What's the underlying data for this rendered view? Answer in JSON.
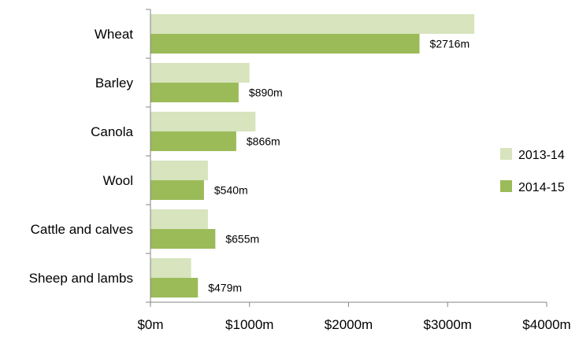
{
  "chart_data": {
    "type": "bar",
    "orientation": "horizontal",
    "categories": [
      "Wheat",
      "Barley",
      "Canola",
      "Wool",
      "Cattle and calves",
      "Sheep and lambs"
    ],
    "series": [
      {
        "name": "2013-14",
        "color": "#d7e4bd",
        "values": [
          3270,
          1000,
          1060,
          580,
          580,
          410
        ]
      },
      {
        "name": "2014-15",
        "color": "#9bbb59",
        "values": [
          2716,
          890,
          866,
          540,
          655,
          479
        ]
      }
    ],
    "data_labels": {
      "2014-15": [
        "$2716m",
        "$890m",
        "$866m",
        "$540m",
        "$655m",
        "$479m"
      ]
    },
    "x_ticks": [
      "$0m",
      "$1000m",
      "$2000m",
      "$3000m",
      "$4000m"
    ],
    "xlim": [
      0,
      4000
    ],
    "grid": false,
    "legend_position": "right"
  }
}
